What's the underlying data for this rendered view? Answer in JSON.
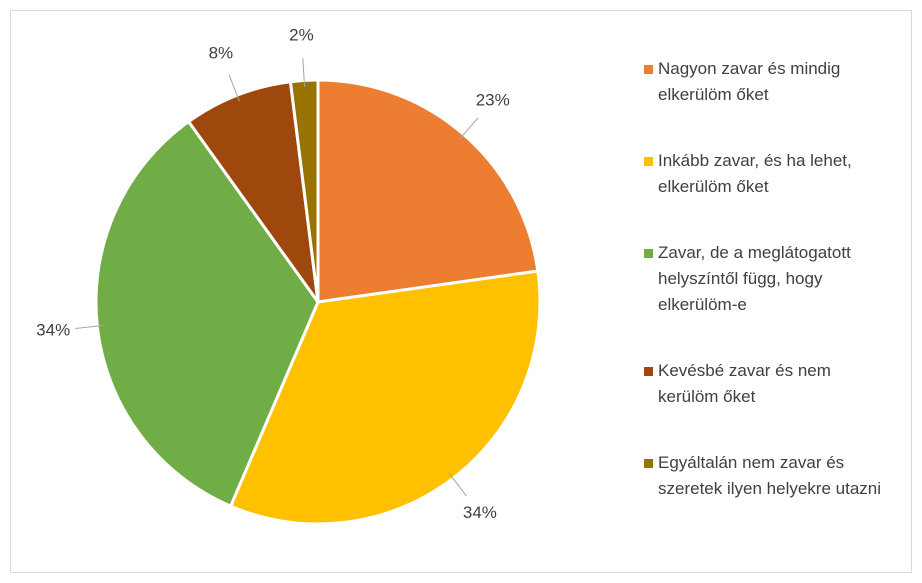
{
  "chart_data": {
    "type": "pie",
    "categories": [
      "Nagyon zavar és mindig elkerülöm őket",
      "Inkább zavar, és ha lehet, elkerülöm őket",
      "Zavar, de a meglátogatott helyszíntől függ, hogy elkerülöm-e",
      "Kevésbé zavar és nem kerülöm őket",
      "Egyáltalán nem zavar és szeretek ilyen helyekre utazni"
    ],
    "values": [
      23,
      34,
      34,
      8,
      2
    ],
    "value_labels": [
      "23%",
      "34%",
      "34%",
      "8%",
      "2%"
    ],
    "colors": [
      "#ED7D31",
      "#FFC000",
      "#70AD47",
      "#9E480E",
      "#997300"
    ],
    "legend": "right"
  }
}
